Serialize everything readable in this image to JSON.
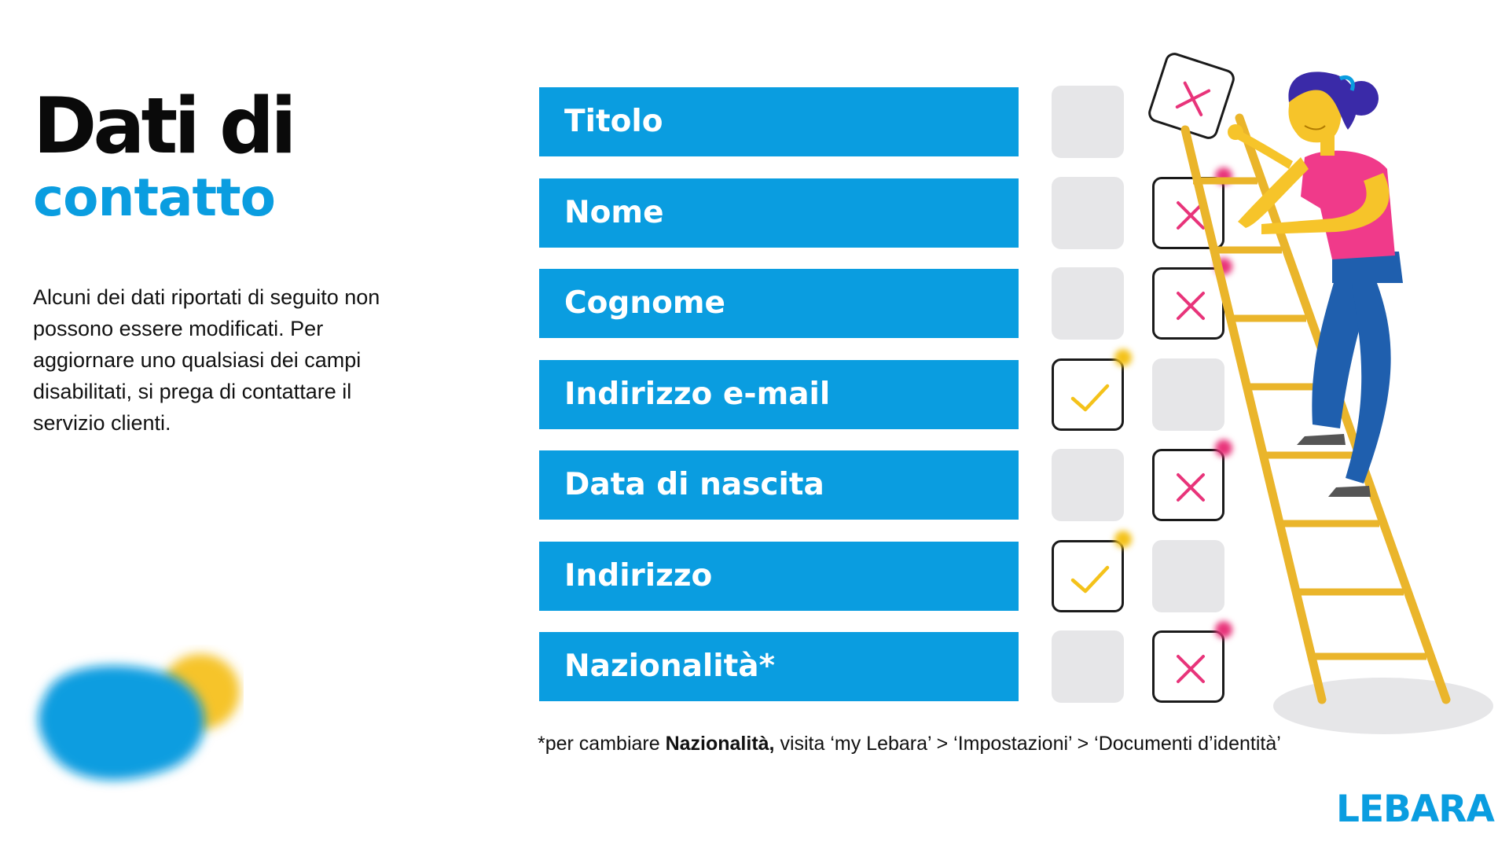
{
  "header": {
    "title": "Dati di",
    "subtitle": "contatto"
  },
  "intro": {
    "text": "Alcuni dei dati riportati di seguito non possono essere modificati. Per aggiornare uno qualsiasi dei campi disabilitati, si prega di contattare il servizio clienti."
  },
  "fields": [
    {
      "label": "Titolo",
      "editable": false
    },
    {
      "label": "Nome",
      "editable": false
    },
    {
      "label": "Cognome",
      "editable": false
    },
    {
      "label": "Indirizzo e-mail",
      "editable": true
    },
    {
      "label": "Data di nascita",
      "editable": false
    },
    {
      "label": "Indirizzo",
      "editable": true
    },
    {
      "label": "Nazionalità*",
      "editable": false
    }
  ],
  "icons": {
    "check": "check-icon",
    "cross": "cross-icon",
    "person": "woman-on-ladder-illustration",
    "blob": "decorative-blob"
  },
  "footnote": {
    "prefix": "*per cambiare ",
    "bold": "Nazionalità,",
    "suffix": " visita ‘my Lebara’ > ‘Impostazioni’ > ‘Documenti d’identità’"
  },
  "brand": {
    "logo_text": "LEBARA"
  },
  "colors": {
    "accent_blue": "#0a9de0",
    "check_yellow": "#f4c21a",
    "cross_pink": "#e8347a",
    "empty_box_gray": "#e6e6e8",
    "shirt_pink": "#f03a8a",
    "jeans_blue": "#1f5fae",
    "ladder_yellow": "#eab52b"
  }
}
